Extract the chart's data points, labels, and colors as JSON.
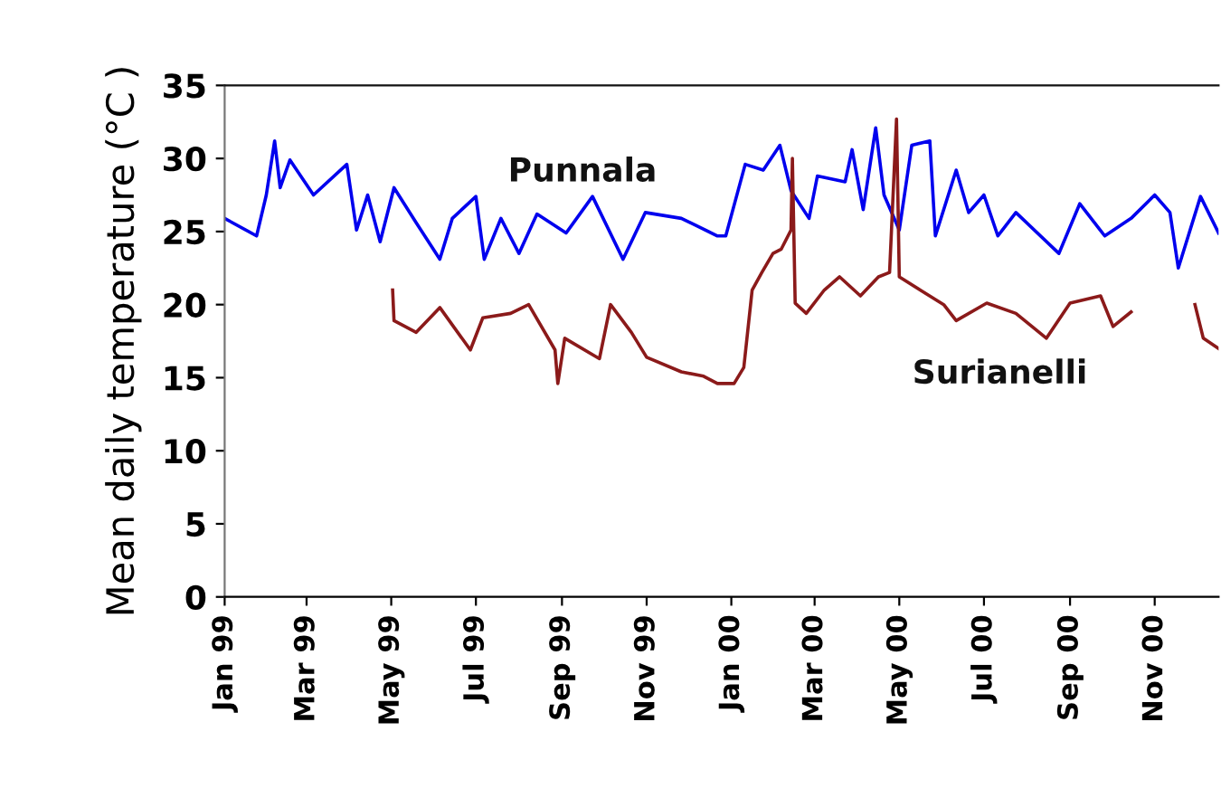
{
  "chart_data": {
    "type": "line",
    "ylabel": "Mean daily temperature (°C )",
    "xlim": [
      "1999-01-01",
      "2000-12-17"
    ],
    "ylim": [
      0,
      35
    ],
    "yticks": [
      0,
      5,
      10,
      15,
      20,
      25,
      30,
      35
    ],
    "xticks": [
      {
        "value": "1999-01-01",
        "label": "Jan 99"
      },
      {
        "value": "1999-03-01",
        "label": "Mar 99"
      },
      {
        "value": "1999-05-01",
        "label": "May 99"
      },
      {
        "value": "1999-07-01",
        "label": "Jul 99"
      },
      {
        "value": "1999-09-01",
        "label": "Sep 99"
      },
      {
        "value": "1999-11-01",
        "label": "Nov 99"
      },
      {
        "value": "2000-01-01",
        "label": "Jan 00"
      },
      {
        "value": "2000-03-01",
        "label": "Mar 00"
      },
      {
        "value": "2000-05-01",
        "label": "May 00"
      },
      {
        "value": "2000-07-01",
        "label": "Jul 00"
      },
      {
        "value": "2000-09-01",
        "label": "Sep 00"
      },
      {
        "value": "2000-11-01",
        "label": "Nov 00"
      }
    ],
    "grid": false,
    "legend": false,
    "marker": "none",
    "line_style": "solid",
    "series": [
      {
        "name": "Punnala",
        "color": "#0000ee",
        "x": [
          "1999-01-01",
          "1999-01-24",
          "1999-01-31",
          "1999-02-06",
          "1999-02-10",
          "1999-02-17",
          "1999-03-06",
          "1999-03-30",
          "1999-04-06",
          "1999-04-14",
          "1999-04-23",
          "1999-05-03",
          "1999-05-19",
          "1999-06-05",
          "1999-06-14",
          "1999-07-01",
          "1999-07-07",
          "1999-07-19",
          "1999-08-01",
          "1999-08-14",
          "1999-09-04",
          "1999-09-23",
          "1999-10-15",
          "1999-10-31",
          "1999-11-26",
          "1999-12-22",
          "1999-12-28",
          "2000-01-11",
          "2000-01-24",
          "2000-02-05",
          "2000-02-13",
          "2000-02-26",
          "2000-03-03",
          "2000-03-23",
          "2000-03-28",
          "2000-04-05",
          "2000-04-14",
          "2000-04-20",
          "2000-05-01",
          "2000-05-10",
          "2000-05-23",
          "2000-05-27",
          "2000-06-11",
          "2000-06-20",
          "2000-07-01",
          "2000-07-11",
          "2000-07-24",
          "2000-08-24",
          "2000-09-08",
          "2000-09-26",
          "2000-10-15",
          "2000-11-01",
          "2000-11-12",
          "2000-11-18",
          "2000-12-04",
          "2000-12-17"
        ],
        "values": [
          25.9,
          24.7,
          27.5,
          31.2,
          28.0,
          29.9,
          27.5,
          29.6,
          25.1,
          27.5,
          24.3,
          28.0,
          25.6,
          23.1,
          25.9,
          27.4,
          23.1,
          25.9,
          23.5,
          26.2,
          24.9,
          27.4,
          23.1,
          26.3,
          25.9,
          24.7,
          24.7,
          29.6,
          29.2,
          30.9,
          27.8,
          25.9,
          28.8,
          28.4,
          30.6,
          26.5,
          32.1,
          27.5,
          25.1,
          30.9,
          31.2,
          24.7,
          29.2,
          26.3,
          27.5,
          24.7,
          26.3,
          23.5,
          26.9,
          24.7,
          25.9,
          27.5,
          26.3,
          22.5,
          27.4,
          24.9
        ]
      },
      {
        "name": "Surianelli",
        "color": "#8b1a1a",
        "x": [
          "1999-05-02",
          "1999-05-03",
          "1999-05-19",
          "1999-06-05",
          "1999-06-27",
          "1999-07-06",
          "1999-07-26",
          "1999-08-08",
          "1999-08-27",
          "1999-08-29",
          "1999-09-03",
          "1999-09-28",
          "1999-10-06",
          "1999-10-21",
          "1999-11-01",
          "1999-11-26",
          "1999-12-12",
          "1999-12-22",
          "2000-01-03",
          "2000-01-10",
          "2000-01-16",
          "2000-01-23",
          "2000-01-31",
          "2000-02-06",
          "2000-02-13",
          "2000-02-14",
          "2000-02-16",
          "2000-02-24",
          "2000-03-08",
          "2000-03-19",
          "2000-04-03",
          "2000-04-16",
          "2000-04-24",
          "2000-04-29",
          "2000-05-01",
          "2000-05-16",
          "2000-06-02",
          "2000-06-11",
          "2000-07-03",
          "2000-07-24",
          "2000-08-15",
          "2000-09-01",
          "2000-09-23",
          "2000-10-02",
          "2000-10-15",
          "2000-10-30",
          "2000-11-30",
          "2000-12-06",
          "2000-12-17"
        ],
        "values": [
          21.0,
          18.9,
          18.1,
          19.8,
          16.9,
          19.1,
          19.4,
          20.0,
          16.9,
          14.6,
          17.7,
          16.3,
          20.0,
          18.1,
          16.4,
          15.4,
          15.1,
          14.6,
          14.6,
          15.7,
          21.0,
          22.2,
          23.5,
          23.8,
          25.1,
          30.0,
          20.1,
          19.4,
          21.0,
          21.9,
          20.6,
          21.9,
          22.2,
          32.7,
          21.9,
          21.0,
          20.0,
          18.9,
          20.1,
          19.4,
          17.7,
          20.1,
          20.6,
          18.5,
          19.5,
          null,
          20.0,
          17.7,
          17.0
        ]
      }
    ]
  }
}
